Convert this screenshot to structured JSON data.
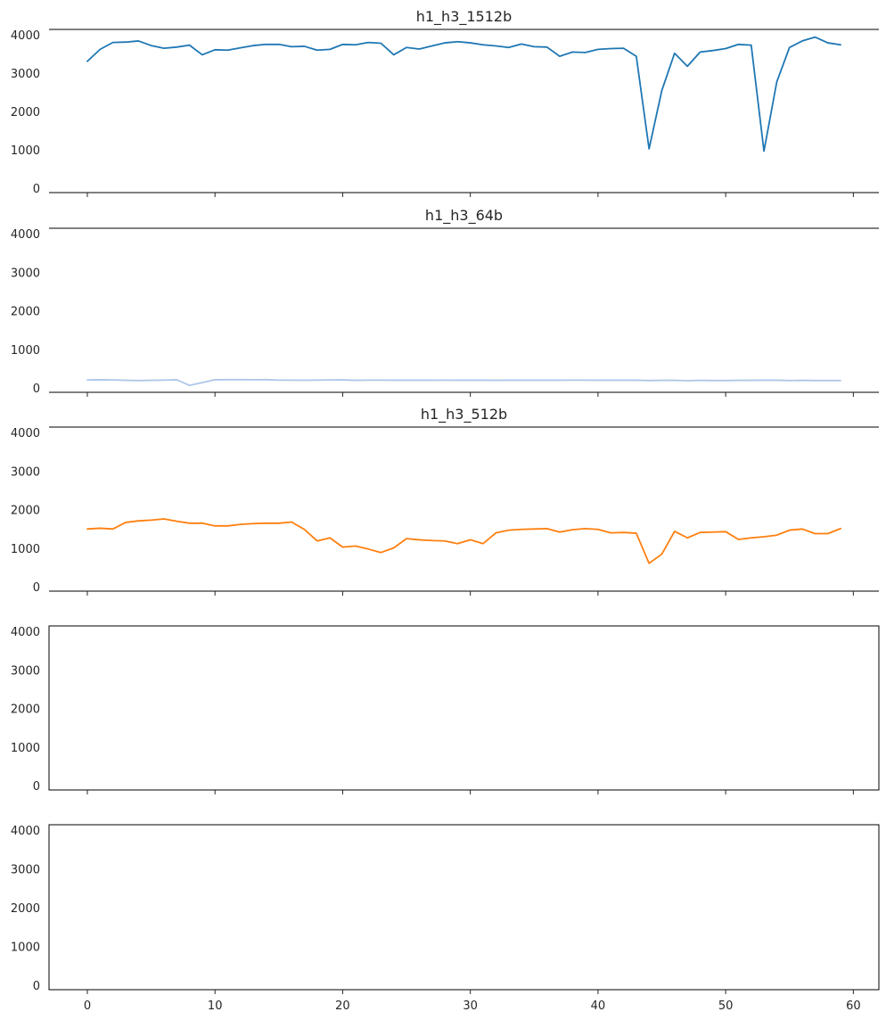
{
  "chart_data": [
    {
      "type": "line",
      "title": "h1_h3_1512b",
      "color": "#1f77b4",
      "xlim": [
        -3,
        62
      ],
      "ylim": [
        -100,
        4150
      ],
      "xticks": [
        0,
        10,
        20,
        30,
        40,
        50,
        60
      ],
      "yticks": [
        0,
        1000,
        2000,
        3000,
        4000
      ],
      "show_xtick_labels": false,
      "spines": "top-bottom",
      "x": [
        0,
        1,
        2,
        3,
        4,
        5,
        6,
        7,
        8,
        9,
        10,
        11,
        12,
        13,
        14,
        15,
        16,
        17,
        18,
        19,
        20,
        21,
        22,
        23,
        24,
        25,
        26,
        27,
        28,
        29,
        30,
        31,
        32,
        33,
        34,
        35,
        36,
        37,
        38,
        39,
        40,
        41,
        42,
        43,
        44,
        45,
        46,
        47,
        48,
        49,
        50,
        51,
        52,
        53,
        54,
        55,
        56,
        57,
        58,
        59
      ],
      "y": [
        3320,
        3630,
        3810,
        3820,
        3850,
        3730,
        3660,
        3690,
        3740,
        3490,
        3620,
        3610,
        3670,
        3730,
        3760,
        3760,
        3700,
        3710,
        3610,
        3630,
        3760,
        3750,
        3810,
        3790,
        3490,
        3680,
        3640,
        3720,
        3800,
        3830,
        3800,
        3750,
        3720,
        3680,
        3770,
        3700,
        3690,
        3450,
        3560,
        3550,
        3630,
        3650,
        3660,
        3450,
        1040,
        2560,
        3530,
        3190,
        3560,
        3600,
        3650,
        3760,
        3740,
        980,
        2780,
        3680,
        3850,
        3950,
        3800,
        3750
      ]
    },
    {
      "type": "line",
      "title": "h1_h3_64b",
      "color": "#aec7e8",
      "xlim": [
        -3,
        62
      ],
      "ylim": [
        -100,
        4150
      ],
      "xticks": [
        0,
        10,
        20,
        30,
        40,
        50,
        60
      ],
      "yticks": [
        0,
        1000,
        2000,
        3000,
        4000
      ],
      "show_xtick_labels": false,
      "spines": "top-bottom",
      "x": [
        0,
        1,
        2,
        3,
        4,
        5,
        6,
        7,
        8,
        9,
        10,
        11,
        12,
        13,
        14,
        15,
        16,
        17,
        18,
        19,
        20,
        21,
        22,
        23,
        24,
        25,
        26,
        27,
        28,
        29,
        30,
        31,
        32,
        33,
        34,
        35,
        36,
        37,
        38,
        39,
        40,
        41,
        42,
        43,
        44,
        45,
        46,
        47,
        48,
        49,
        50,
        51,
        52,
        53,
        54,
        55,
        56,
        57,
        58,
        59
      ],
      "y": [
        220,
        225,
        220,
        210,
        205,
        210,
        215,
        225,
        80,
        150,
        225,
        228,
        228,
        226,
        228,
        215,
        215,
        213,
        215,
        220,
        222,
        210,
        215,
        215,
        213,
        213,
        213,
        213,
        215,
        213,
        213,
        213,
        210,
        213,
        213,
        213,
        213,
        213,
        215,
        215,
        213,
        213,
        213,
        213,
        205,
        210,
        210,
        200,
        210,
        205,
        205,
        210,
        210,
        213,
        213,
        205,
        210,
        205,
        205,
        205
      ]
    },
    {
      "type": "line",
      "title": "h1_h3_512b",
      "color": "#ff7f0e",
      "xlim": [
        -3,
        62
      ],
      "ylim": [
        -100,
        4150
      ],
      "xticks": [
        0,
        10,
        20,
        30,
        40,
        50,
        60
      ],
      "yticks": [
        0,
        1000,
        2000,
        3000,
        4000
      ],
      "show_xtick_labels": false,
      "spines": "top-bottom",
      "x": [
        0,
        1,
        2,
        3,
        4,
        5,
        6,
        7,
        8,
        9,
        10,
        11,
        12,
        13,
        14,
        15,
        16,
        17,
        18,
        19,
        20,
        21,
        22,
        23,
        24,
        25,
        26,
        27,
        28,
        29,
        30,
        31,
        32,
        33,
        34,
        35,
        36,
        37,
        38,
        39,
        40,
        41,
        42,
        43,
        44,
        45,
        46,
        47,
        48,
        49,
        50,
        51,
        52,
        53,
        54,
        55,
        56,
        57,
        58,
        59
      ],
      "y": [
        1510,
        1530,
        1510,
        1680,
        1720,
        1740,
        1770,
        1710,
        1660,
        1660,
        1590,
        1590,
        1630,
        1650,
        1660,
        1660,
        1690,
        1500,
        1200,
        1280,
        1040,
        1070,
        990,
        900,
        1020,
        1260,
        1230,
        1210,
        1200,
        1130,
        1230,
        1130,
        1410,
        1480,
        1500,
        1510,
        1520,
        1430,
        1490,
        1520,
        1500,
        1410,
        1420,
        1400,
        620,
        860,
        1450,
        1280,
        1420,
        1430,
        1440,
        1240,
        1280,
        1310,
        1350,
        1480,
        1510,
        1390,
        1390,
        1520
      ]
    },
    {
      "type": "line",
      "title": "",
      "color": "#000000",
      "xlim": [
        -3,
        62
      ],
      "ylim": [
        -100,
        4150
      ],
      "xticks": [
        0,
        10,
        20,
        30,
        40,
        50,
        60
      ],
      "yticks": [
        0,
        1000,
        2000,
        3000,
        4000
      ],
      "show_xtick_labels": false,
      "spines": "box",
      "x": [],
      "y": []
    },
    {
      "type": "line",
      "title": "",
      "color": "#000000",
      "xlim": [
        -3,
        62
      ],
      "ylim": [
        -100,
        4150
      ],
      "xticks": [
        0,
        10,
        20,
        30,
        40,
        50,
        60
      ],
      "yticks": [
        0,
        1000,
        2000,
        3000,
        4000
      ],
      "show_xtick_labels": true,
      "spines": "box",
      "x": [],
      "y": []
    }
  ]
}
